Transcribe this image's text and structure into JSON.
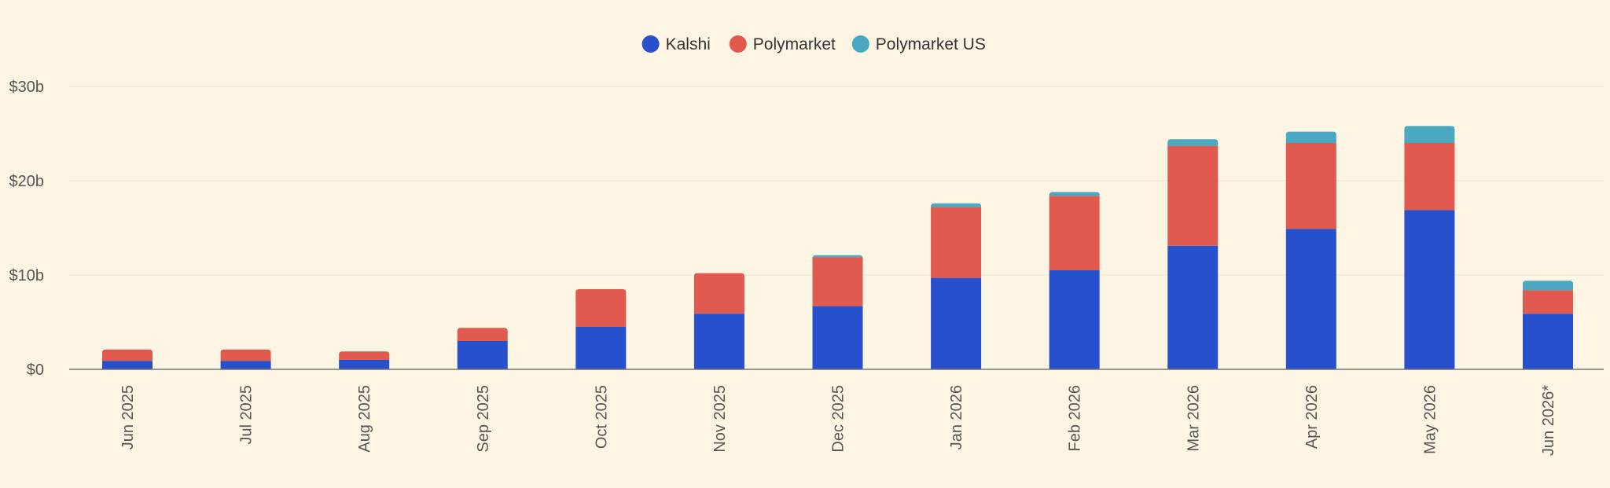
{
  "chart_data": {
    "type": "bar",
    "stacked": true,
    "categories": [
      "Jun 2025",
      "Jul 2025",
      "Aug 2025",
      "Sep 2025",
      "Oct 2025",
      "Nov 2025",
      "Dec 2025",
      "Jan 2026",
      "Feb 2026",
      "Mar 2026",
      "Apr 2026",
      "May 2026",
      "Jun 2026*"
    ],
    "series": [
      {
        "name": "Kalshi",
        "color": "#2650cc",
        "values": [
          0.9,
          0.9,
          1.0,
          3.0,
          4.5,
          5.9,
          6.7,
          9.7,
          10.5,
          13.1,
          14.9,
          16.9,
          5.9
        ]
      },
      {
        "name": "Polymarket",
        "color": "#e05a50",
        "values": [
          1.2,
          1.2,
          0.9,
          1.4,
          4.0,
          4.3,
          5.2,
          7.5,
          7.9,
          10.6,
          9.1,
          7.1,
          2.5
        ]
      },
      {
        "name": "Polymarket US",
        "color": "#4aa8c2",
        "values": [
          0,
          0,
          0,
          0,
          0,
          0,
          0.2,
          0.4,
          0.4,
          0.7,
          1.2,
          1.8,
          1.0
        ]
      }
    ],
    "yticks": [
      {
        "value": 0,
        "label": "$0"
      },
      {
        "value": 10,
        "label": "$10b"
      },
      {
        "value": 20,
        "label": "$20b"
      },
      {
        "value": 30,
        "label": "$30b"
      }
    ],
    "ylim": [
      0,
      30
    ],
    "legend_position": "top-center",
    "grid": true
  }
}
